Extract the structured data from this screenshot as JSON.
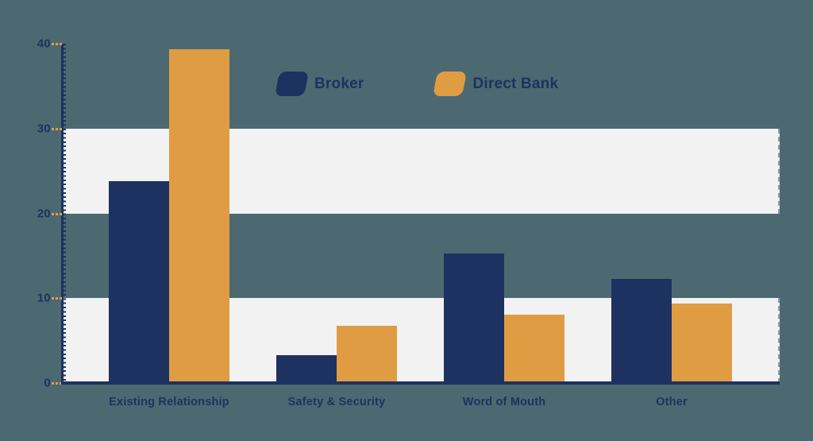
{
  "chart_data": {
    "type": "bar",
    "title": "",
    "categories": [
      "Existing Relationship",
      "Safety & Security",
      "Word of Mouth",
      "Other"
    ],
    "series": [
      {
        "name": "Broker",
        "color": "#1d3261",
        "values": [
          23.8,
          3.3,
          15.3,
          12.3
        ]
      },
      {
        "name": "Direct Bank",
        "color": "#e09c42",
        "values": [
          39.3,
          6.7,
          8.1,
          9.4
        ]
      }
    ],
    "ylim": [
      0,
      40
    ],
    "yticks": [
      0,
      10,
      20,
      30,
      40
    ],
    "bands": [
      [
        20,
        30
      ],
      [
        0,
        10
      ]
    ],
    "legend_position": "top-center",
    "grid": "alternating-horizontal-bands",
    "xlabel": "",
    "ylabel": ""
  },
  "colors": {
    "background": "#4c6971",
    "band": "#f2f2f3",
    "navy": "#1d3261",
    "orange": "#e09c42",
    "axis": "#1d3261",
    "tick_mark": "#e09c42",
    "text": "#1d3261"
  }
}
